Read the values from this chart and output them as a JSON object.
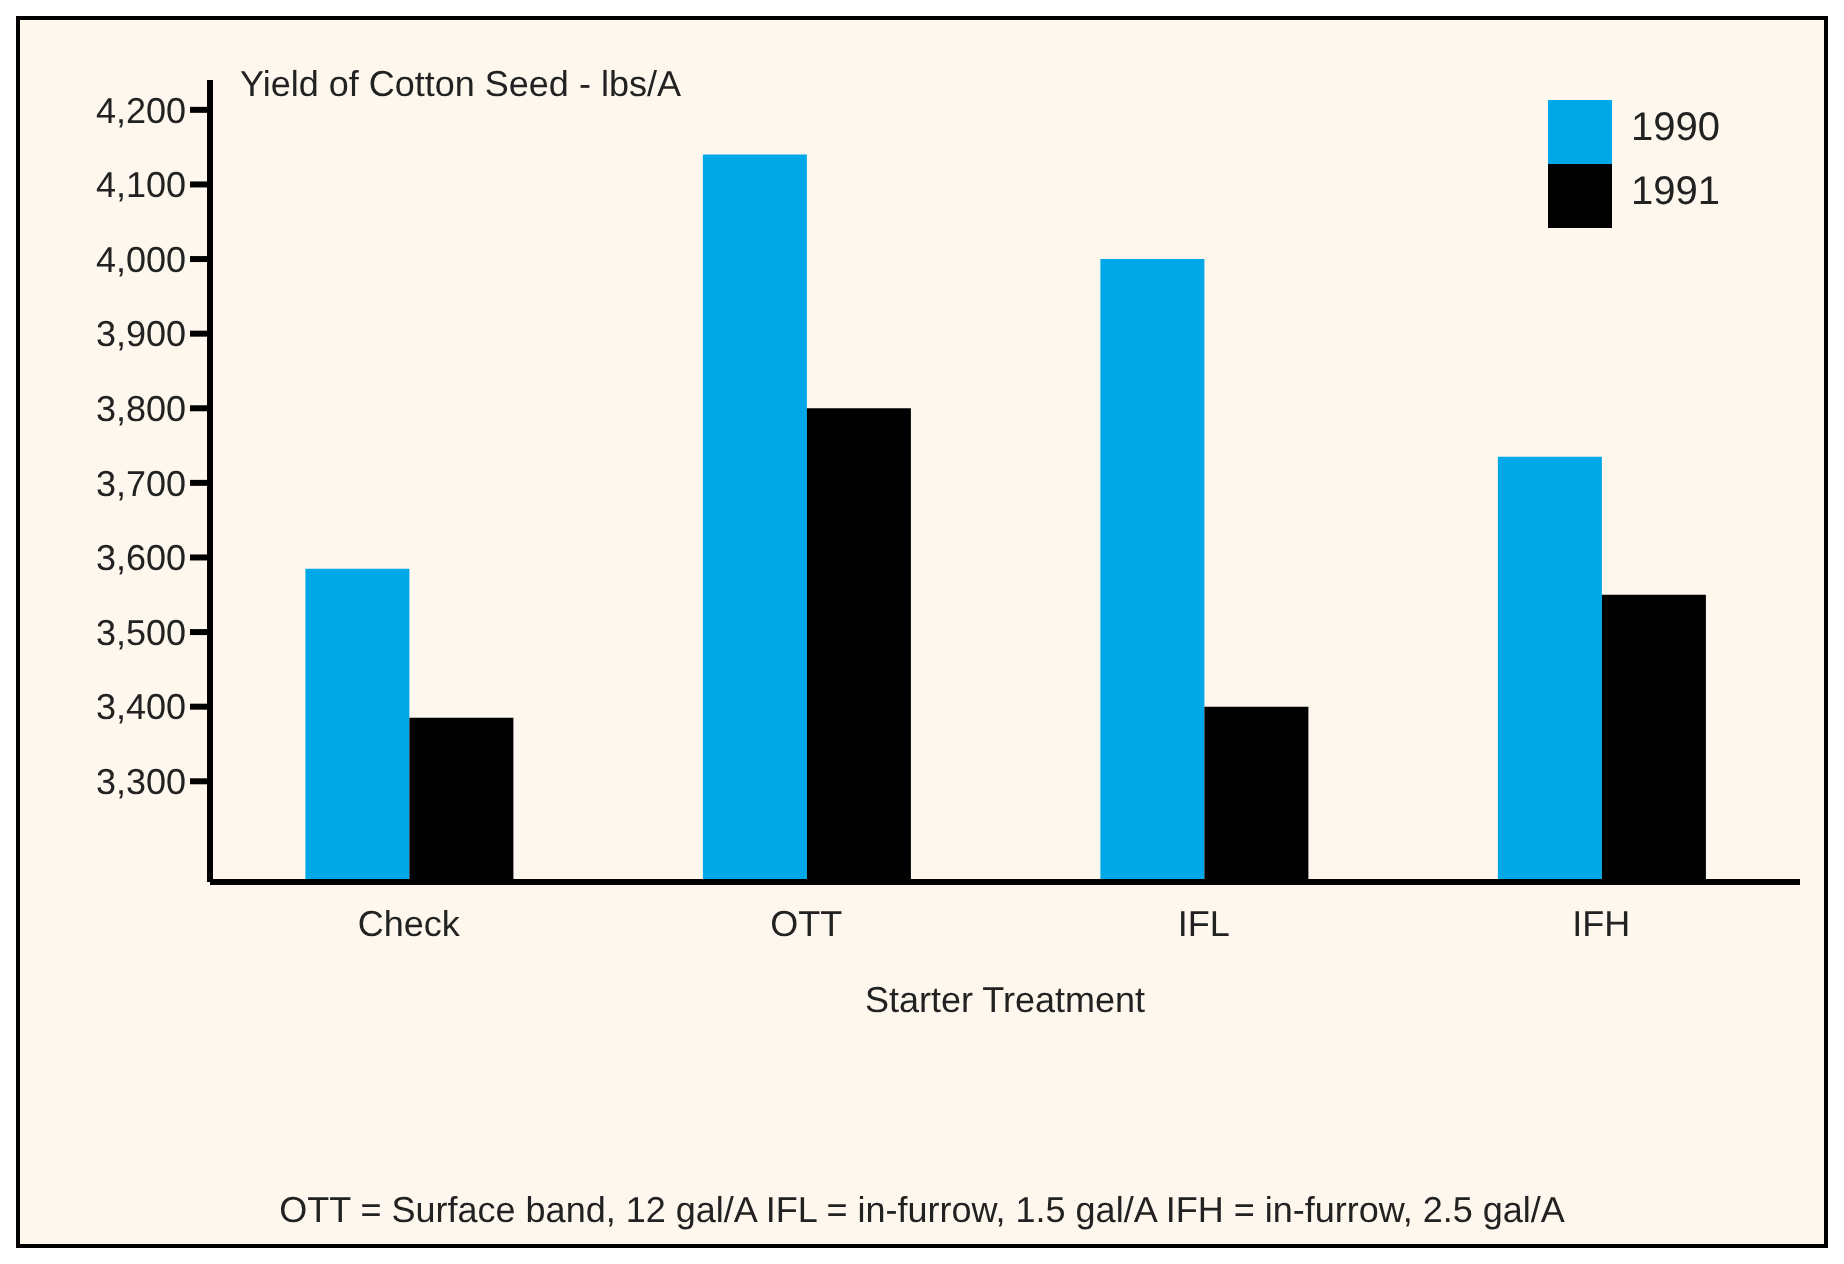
{
  "chart_data": {
    "type": "bar",
    "title": "Yield of Cotton Seed - lbs/A",
    "xlabel": "Starter Treatment",
    "annotations": [
      "OTT = Surface band, 12 gal/A IFL = in-furrow, 1.5 gal/A IFH = in-furrow, 2.5 gal/A"
    ],
    "categories": [
      "Check",
      "OTT",
      "IFL",
      "IFH"
    ],
    "series": [
      {
        "name": "1990",
        "color": "#00a8e8",
        "values": [
          3585,
          4140,
          4000,
          3735
        ]
      },
      {
        "name": "1991",
        "color": "#000000",
        "values": [
          3385,
          3800,
          3400,
          3550
        ]
      }
    ],
    "ylim": [
      3165,
      4240
    ],
    "yticks": [
      {
        "value": 3300,
        "label": "3,300"
      },
      {
        "value": 3400,
        "label": "3,400"
      },
      {
        "value": 3500,
        "label": "3,500"
      },
      {
        "value": 3600,
        "label": "3,600"
      },
      {
        "value": 3700,
        "label": "3,700"
      },
      {
        "value": 3800,
        "label": "3,800"
      },
      {
        "value": 3900,
        "label": "3,900"
      },
      {
        "value": 4000,
        "label": "4,000"
      },
      {
        "value": 4100,
        "label": "4,100"
      },
      {
        "value": 4200,
        "label": "4,200"
      }
    ],
    "grid": false,
    "legend": "top right"
  }
}
